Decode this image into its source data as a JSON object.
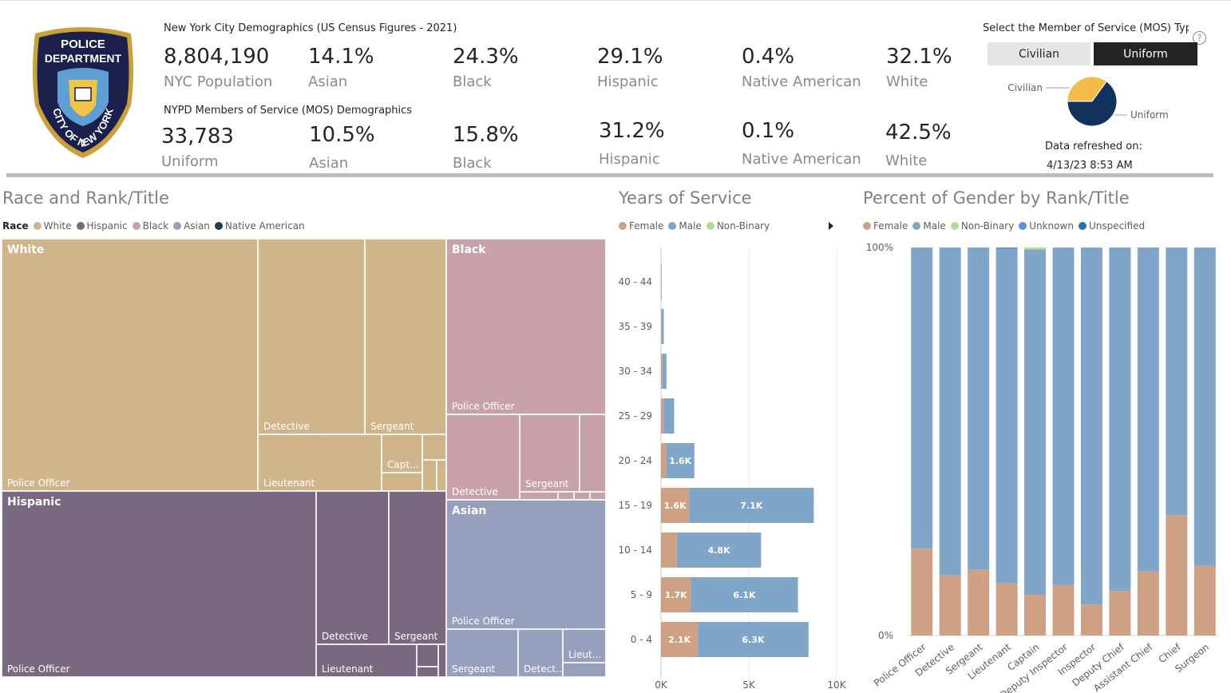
{
  "logo": {
    "top_text": [
      "POLICE",
      "DEPARTMENT"
    ],
    "ring_text": "CITY OF NEW YORK"
  },
  "nyc": {
    "title": "New York City Demographics (US Census Figures - 2021)",
    "stats": [
      {
        "value": "8,804,190",
        "label": "NYC Population"
      },
      {
        "value": "14.1%",
        "label": "Asian"
      },
      {
        "value": "24.3%",
        "label": "Black"
      },
      {
        "value": "29.1%",
        "label": "Hispanic"
      },
      {
        "value": "0.4%",
        "label": "Native American"
      },
      {
        "value": "32.1%",
        "label": "White"
      }
    ]
  },
  "nypd": {
    "title": "NYPD Members of Service (MOS) Demographics",
    "stats": [
      {
        "value": "33,783",
        "label": "Uniform"
      },
      {
        "value": "10.5%",
        "label": "Asian"
      },
      {
        "value": "15.8%",
        "label": "Black"
      },
      {
        "value": "31.2%",
        "label": "Hispanic"
      },
      {
        "value": "0.1%",
        "label": "Native American"
      },
      {
        "value": "42.5%",
        "label": "White"
      }
    ]
  },
  "mos_selector": {
    "label": "Select the Member of Service (MOS) Typ",
    "help": "?",
    "buttons": [
      {
        "label": "Civilian",
        "selected": false
      },
      {
        "label": "Uniform",
        "selected": true
      }
    ]
  },
  "refresh": {
    "label": "Data refreshed on:",
    "value": "4/13/23 8:53 AM"
  },
  "colors": {
    "white": "#d0b58a",
    "hispanic": "#7a6780",
    "black": "#c7a2a8",
    "asian": "#96a0bc",
    "native": "#1e3d4a",
    "female": "#cfa184",
    "male": "#7fa5c8",
    "nonbinary": "#b2de93",
    "unknown": "#5b8fdc",
    "unspecified": "#2c6eaf",
    "pie_uniform": "#12325e",
    "pie_civilian": "#f3bb48"
  },
  "race_rank": {
    "title": "Race and Rank/Title",
    "legend_title": "Race",
    "legend": [
      "White",
      "Hispanic",
      "Black",
      "Asian",
      "Native American"
    ],
    "groups": [
      "White",
      "Hispanic",
      "Black",
      "Asian"
    ],
    "node_labels": [
      "Police Officer",
      "Detective",
      "Sergeant",
      "Lieutenant",
      "Capt...",
      "Detect...",
      "Lieut..."
    ]
  },
  "years_of_service": {
    "title": "Years of Service",
    "legend": [
      "Female",
      "Male",
      "Non-Binary"
    ]
  },
  "gender_rank": {
    "title": "Percent of Gender by Rank/Title",
    "legend": [
      "Female",
      "Male",
      "Non-Binary",
      "Unknown",
      "Unspecified"
    ]
  },
  "chart_data": [
    {
      "type": "pie",
      "title": "",
      "slices": [
        {
          "name": "Civilian",
          "value": 35
        },
        {
          "name": "Uniform",
          "value": 65
        }
      ]
    },
    {
      "type": "bar",
      "orientation": "horizontal",
      "stacked": true,
      "title": "Years of Service",
      "categories": [
        "0 - 4",
        "5 - 9",
        "10 - 14",
        "15 - 19",
        "20 - 24",
        "25 - 29",
        "30 - 34",
        "35 - 39",
        "40 - 44"
      ],
      "series": [
        {
          "name": "Female",
          "values": [
            2100,
            1700,
            900,
            1600,
            300,
            150,
            80,
            40,
            10
          ]
        },
        {
          "name": "Male",
          "values": [
            6300,
            6100,
            4800,
            7100,
            1600,
            600,
            230,
            120,
            30
          ]
        },
        {
          "name": "Non-Binary",
          "values": [
            0,
            0,
            0,
            0,
            0,
            0,
            0,
            0,
            0
          ]
        }
      ],
      "bar_labels": {
        "Female": [
          "2.1K",
          "1.7K",
          "",
          "1.6K",
          "",
          "",
          "",
          "",
          ""
        ],
        "Male": [
          "6.3K",
          "6.1K",
          "4.8K",
          "7.1K",
          "1.6K",
          "",
          "",
          "",
          ""
        ]
      },
      "xlim": [
        0,
        10000
      ],
      "x_ticks": [
        "0K",
        "5K",
        "10K"
      ],
      "legend_position": "top-left",
      "grid": true
    },
    {
      "type": "bar",
      "stacked": true,
      "percent": true,
      "title": "Percent of Gender by Rank/Title",
      "categories": [
        "Police Officer",
        "Detective",
        "Sergeant",
        "Lieutenant",
        "Captain",
        "Deputy Inspector",
        "Inspector",
        "Deputy Chief",
        "Assistant Chief",
        "Chief",
        "Surgeon"
      ],
      "series": [
        {
          "name": "Female",
          "values": [
            22.5,
            15.5,
            17,
            13.5,
            10.5,
            13,
            8,
            11.5,
            16.5,
            31,
            18
          ]
        },
        {
          "name": "Male",
          "values": [
            77.5,
            84.5,
            83,
            86.2,
            89,
            87,
            92,
            88.5,
            83.5,
            69,
            82
          ]
        },
        {
          "name": "Non-Binary",
          "values": [
            0,
            0,
            0,
            0,
            0.5,
            0,
            0,
            0,
            0,
            0,
            0
          ]
        },
        {
          "name": "Unknown",
          "values": [
            0,
            0,
            0,
            0.3,
            0,
            0,
            0,
            0,
            0,
            0,
            0
          ]
        },
        {
          "name": "Unspecified",
          "values": [
            0,
            0,
            0,
            0,
            0,
            0,
            0,
            0,
            0,
            0,
            0
          ]
        }
      ],
      "ylim": [
        0,
        100
      ],
      "y_ticks": [
        "0%",
        "100%"
      ],
      "legend_position": "top-left",
      "grid": false
    }
  ]
}
